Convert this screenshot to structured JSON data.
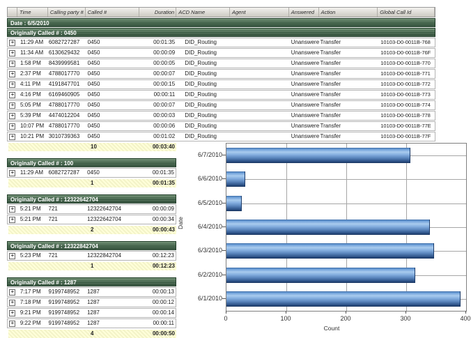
{
  "table": {
    "columns": [
      {
        "label": ""
      },
      {
        "label": "Time"
      },
      {
        "label": "Calling party #"
      },
      {
        "label": "Called #"
      },
      {
        "label": "Duration"
      },
      {
        "label": "ACD Name"
      },
      {
        "label": "Agent"
      },
      {
        "label": "Answered"
      },
      {
        "label": "Action"
      },
      {
        "label": "Global Call Id"
      }
    ],
    "date_header": "Date : 6/5/2010",
    "expand_icon": "+",
    "main_group": {
      "header": "Originally Called # : 0450",
      "rows": [
        [
          "11:29 AM",
          "6082727287",
          "0450",
          "00:01:35",
          "DID_Routing",
          "",
          "Unanswered",
          "Transfer",
          "10103-D0-0011B-768"
        ],
        [
          "11:34 AM",
          "6130629432",
          "0450",
          "00:00:09",
          "DID_Routing",
          "",
          "Unanswered",
          "Transfer",
          "10103-D0-0011B-76F"
        ],
        [
          "1:58 PM",
          "8439999581",
          "0450",
          "00:00:05",
          "DID_Routing",
          "",
          "Unanswered",
          "Transfer",
          "10103-D0-0011B-770"
        ],
        [
          "2:37 PM",
          "4788017770",
          "0450",
          "00:00:07",
          "DID_Routing",
          "",
          "Unanswered",
          "Transfer",
          "10103-D0-0011B-771"
        ],
        [
          "4:11 PM",
          "4191847701",
          "0450",
          "00:00:15",
          "DID_Routing",
          "",
          "Unanswered",
          "Transfer",
          "10103-D0-0011B-772"
        ],
        [
          "4:16 PM",
          "6169460905",
          "0450",
          "00:00:11",
          "DID_Routing",
          "",
          "Unanswered",
          "Transfer",
          "10103-D0-0011B-773"
        ],
        [
          "5:05 PM",
          "4788017770",
          "0450",
          "00:00:07",
          "DID_Routing",
          "",
          "Unanswered",
          "Transfer",
          "10103-D0-0011B-774"
        ],
        [
          "5:39 PM",
          "4474012204",
          "0450",
          "00:00:03",
          "DID_Routing",
          "",
          "Unanswered",
          "Transfer",
          "10103-D0-0011B-778"
        ],
        [
          "10:07 PM",
          "4788017770",
          "0450",
          "00:00:06",
          "DID_Routing",
          "",
          "Unanswered",
          "Transfer",
          "10103-D0-0011B-77E"
        ],
        [
          "10:21 PM",
          "3010739363",
          "0450",
          "00:01:02",
          "DID_Routing",
          "",
          "Unanswered",
          "Transfer",
          "10103-D0-0011B-77F"
        ]
      ],
      "summary": {
        "count": "10",
        "total": "00:03:40"
      }
    },
    "sub_groups": [
      {
        "header": "Originally Called # : 100",
        "rows": [
          [
            "11:29 AM",
            "6082727287",
            "0450",
            "00:01:35"
          ]
        ],
        "summary": {
          "count": "1",
          "total": "00:01:35"
        }
      },
      {
        "header": "Originally Called # : 12322642704",
        "rows": [
          [
            "5:21 PM",
            "721",
            "12322642704",
            "00:00:09"
          ],
          [
            "5:21 PM",
            "721",
            "12322642704",
            "00:00:34"
          ]
        ],
        "summary": {
          "count": "2",
          "total": "00:00:43"
        }
      },
      {
        "header": "Originally Called # : 12322842704",
        "rows": [
          [
            "5:23 PM",
            "721",
            "12322842704",
            "00:12:23"
          ]
        ],
        "summary": {
          "count": "1",
          "total": "00:12:23"
        }
      },
      {
        "header": "Originally Called # : 1287",
        "rows": [
          [
            "7:17 PM",
            "9199748952",
            "1287",
            "00:00:13"
          ],
          [
            "7:18 PM",
            "9199748952",
            "1287",
            "00:00:12"
          ],
          [
            "9:21 PM",
            "9199748952",
            "1287",
            "00:00:14"
          ],
          [
            "9:22 PM",
            "9199748952",
            "1287",
            "00:00:11"
          ]
        ],
        "summary": {
          "count": "4",
          "total": "00:00:50"
        }
      }
    ]
  },
  "chart_data": {
    "type": "bar",
    "orientation": "horizontal",
    "title": "",
    "categories": [
      "6/7/2010",
      "6/6/2010",
      "6/5/2010",
      "6/4/2010",
      "6/3/2010",
      "6/2/2010",
      "6/1/2010"
    ],
    "values": [
      307,
      31,
      25,
      340,
      347,
      315,
      391
    ],
    "xlabel": "Count",
    "ylabel": "Date",
    "xlim": [
      0,
      400
    ],
    "xticks": [
      0,
      100,
      200,
      300,
      400
    ],
    "grid": true,
    "legend": false,
    "bar_color": "#6d9fd8"
  }
}
